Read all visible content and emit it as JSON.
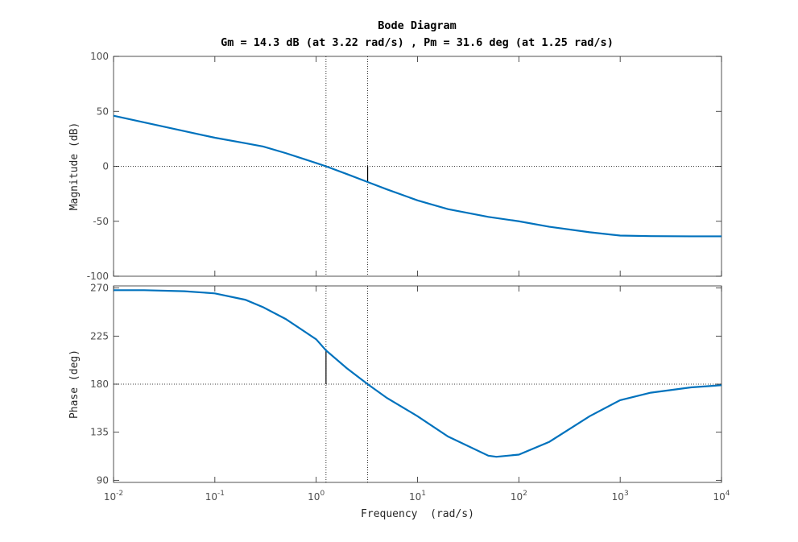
{
  "chart_data": [
    {
      "type": "line",
      "title": "Bode Diagram",
      "subtitle": "Gm = 14.3 dB (at 3.22 rad/s) ,  Pm = 31.6 deg (at 1.25 rad/s)",
      "ylabel": "Magnitude (dB)",
      "xscale": "log",
      "xlim": [
        0.01,
        10000
      ],
      "xticks": [
        0.01,
        0.1,
        1,
        10,
        100,
        1000,
        10000
      ],
      "ylim": [
        -100,
        100
      ],
      "yticks": [
        -100,
        -50,
        0,
        50,
        100
      ],
      "reference_line": 0,
      "margin_marker": {
        "freq": 3.22,
        "from": 0,
        "to": -14.3
      },
      "x": [
        0.01,
        0.02,
        0.05,
        0.1,
        0.2,
        0.3,
        0.5,
        1,
        1.25,
        2,
        3.22,
        5,
        10,
        20,
        50,
        100,
        200,
        500,
        1000,
        2000,
        5000,
        10000
      ],
      "color": "#0072bd",
      "values": [
        46,
        40,
        32,
        26,
        21,
        18,
        12,
        3,
        0,
        -7,
        -14.3,
        -21,
        -31,
        -39,
        -46,
        -50,
        -55,
        -60,
        -63,
        -63.5,
        -63.7,
        -63.7
      ]
    },
    {
      "type": "line",
      "ylabel": "Phase (deg)",
      "xlabel": "Frequency  (rad/s)",
      "xscale": "log",
      "xlim": [
        0.01,
        10000
      ],
      "xticks": [
        {
          "value": 0.01,
          "label": "10",
          "exponent": "-2"
        },
        {
          "value": 0.1,
          "label": "10",
          "exponent": "-1"
        },
        {
          "value": 1,
          "label": "10",
          "exponent": "0"
        },
        {
          "value": 10,
          "label": "10",
          "exponent": "1"
        },
        {
          "value": 100,
          "label": "10",
          "exponent": "2"
        },
        {
          "value": 1000,
          "label": "10",
          "exponent": "3"
        },
        {
          "value": 10000,
          "label": "10",
          "exponent": "4"
        }
      ],
      "ylim": [
        88,
        272
      ],
      "yticks": [
        90,
        135,
        180,
        225,
        270
      ],
      "reference_line": 180,
      "margin_marker": {
        "freq": 1.25,
        "from": 180,
        "to": 211.6
      },
      "x": [
        0.01,
        0.02,
        0.05,
        0.1,
        0.2,
        0.3,
        0.5,
        1,
        1.25,
        2,
        3.22,
        5,
        10,
        20,
        50,
        60,
        100,
        200,
        500,
        1000,
        2000,
        5000,
        10000
      ],
      "color": "#0072bd",
      "values": [
        268,
        268,
        267,
        265,
        259,
        252,
        241,
        222,
        211.6,
        195,
        180,
        167,
        150,
        131,
        113,
        112,
        114,
        126,
        150,
        165,
        172,
        177,
        179
      ]
    }
  ]
}
